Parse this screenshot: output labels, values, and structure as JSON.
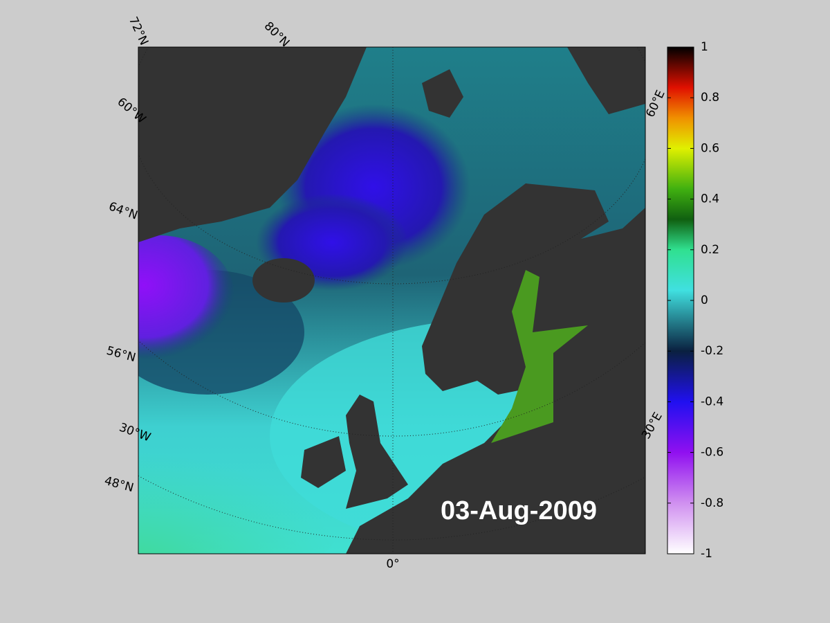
{
  "map_labels": [
    "72°N",
    "80°N",
    "60°W",
    "64°N",
    "56°N",
    "30°W",
    "48°N",
    "0°",
    "30°E",
    "60°E"
  ],
  "date": "03-Aug-2009",
  "colorbar": {
    "lim": [
      -1,
      1
    ],
    "ticks": [
      1,
      0.8,
      0.6,
      0.4,
      0.2,
      0,
      -0.2,
      -0.4,
      -0.6,
      -0.8,
      -1
    ]
  }
}
